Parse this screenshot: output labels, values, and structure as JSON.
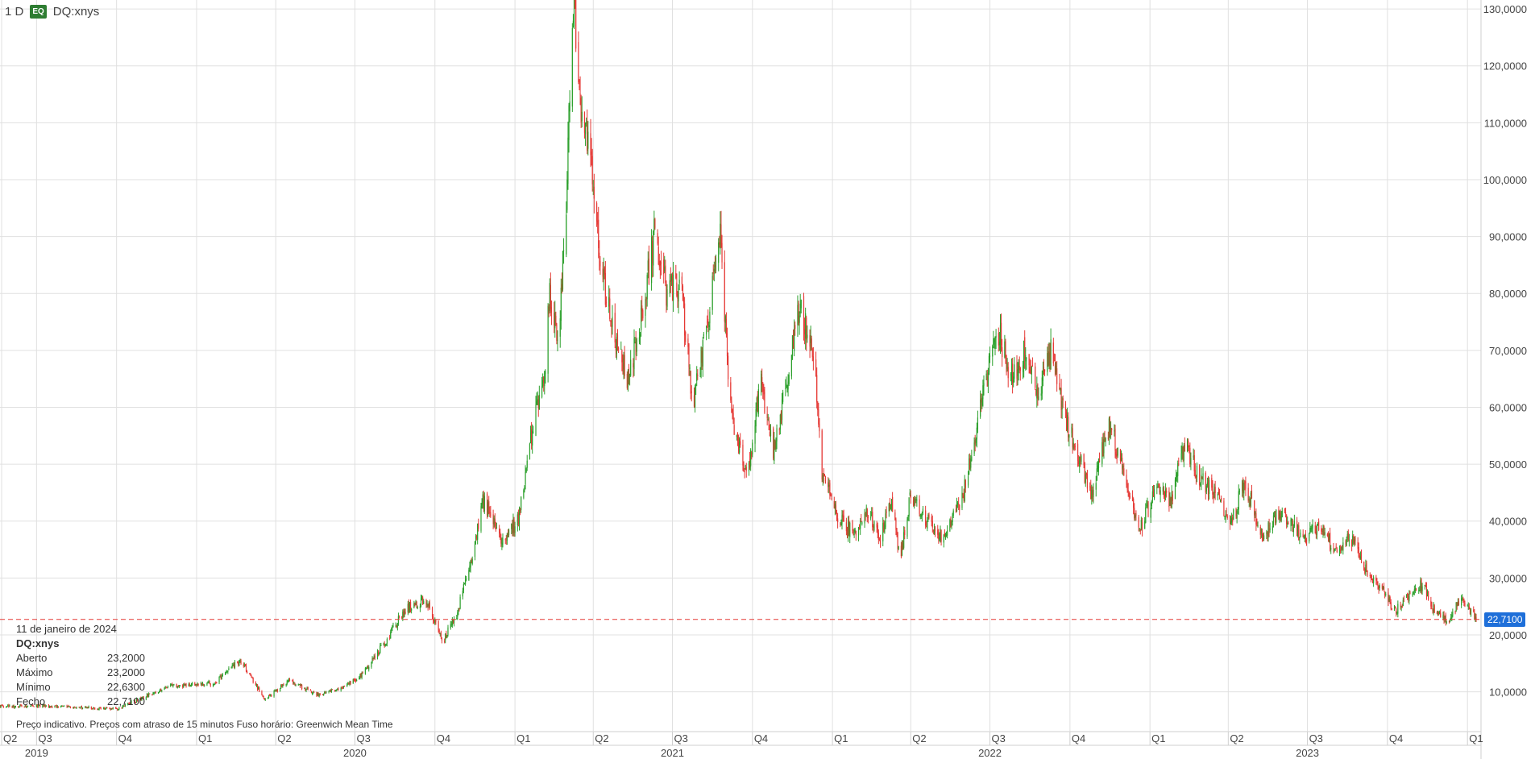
{
  "header": {
    "interval": "1 D",
    "badge": "EQ",
    "symbol": "DQ:xnys"
  },
  "info": {
    "date": "11 de janeiro de 2024",
    "symbol": "DQ:xnys",
    "rows": [
      {
        "label": "Aberto",
        "value": "23,2000"
      },
      {
        "label": "Máximo",
        "value": "23,2000"
      },
      {
        "label": "Mínimo",
        "value": "22,6300"
      },
      {
        "label": "Fecho",
        "value": "22,7100"
      }
    ]
  },
  "footer": {
    "note": "Preço indicativo. Preços com atraso de 15 minutos    Fuso horário: Greenwich Mean Time"
  },
  "colors": {
    "up": "#2ca02c",
    "down": "#e53935",
    "grid": "#e0e0e0",
    "last_price_line": "#e53935",
    "last_price_tag": "#1e6fd9"
  },
  "chart_data": {
    "type": "candlestick",
    "ytick_labels": [
      "10,0000",
      "20,0000",
      "30,0000",
      "40,0000",
      "50,0000",
      "60,0000",
      "70,0000",
      "80,0000",
      "90,0000",
      "100,0000",
      "110,0000",
      "120,0000",
      "130,0000"
    ],
    "ylim": [
      3,
      131
    ],
    "xlim": [
      "2019-05-20",
      "2024-01-11"
    ],
    "quarter_ticks": [
      {
        "date": "2019-04-01",
        "label": "Q2"
      },
      {
        "date": "2019-07-01",
        "label": "Q3"
      },
      {
        "date": "2019-10-01",
        "label": "Q4"
      },
      {
        "date": "2020-01-01",
        "label": "Q1"
      },
      {
        "date": "2020-04-01",
        "label": "Q2"
      },
      {
        "date": "2020-07-01",
        "label": "Q3"
      },
      {
        "date": "2020-10-01",
        "label": "Q4"
      },
      {
        "date": "2021-01-01",
        "label": "Q1"
      },
      {
        "date": "2021-04-01",
        "label": "Q2"
      },
      {
        "date": "2021-07-01",
        "label": "Q3"
      },
      {
        "date": "2021-10-01",
        "label": "Q4"
      },
      {
        "date": "2022-01-01",
        "label": "Q1"
      },
      {
        "date": "2022-04-01",
        "label": "Q2"
      },
      {
        "date": "2022-07-01",
        "label": "Q3"
      },
      {
        "date": "2022-10-01",
        "label": "Q4"
      },
      {
        "date": "2023-01-01",
        "label": "Q1"
      },
      {
        "date": "2023-04-01",
        "label": "Q2"
      },
      {
        "date": "2023-07-01",
        "label": "Q3"
      },
      {
        "date": "2023-10-01",
        "label": "Q4"
      },
      {
        "date": "2024-01-01",
        "label": "Q1"
      }
    ],
    "year_labels": [
      {
        "date": "2019-07-01",
        "label": "2019"
      },
      {
        "date": "2020-07-01",
        "label": "2020"
      },
      {
        "date": "2021-07-01",
        "label": "2021"
      },
      {
        "date": "2022-07-01",
        "label": "2022"
      },
      {
        "date": "2023-07-01",
        "label": "2023"
      }
    ],
    "last_price": 22.71,
    "last_price_label": "22,7100",
    "grid": true,
    "price_path": [
      [
        "2019-05-20",
        7.5
      ],
      [
        "2019-07-01",
        7.5
      ],
      [
        "2019-10-01",
        7.0
      ],
      [
        "2019-12-01",
        11.0
      ],
      [
        "2020-01-20",
        11.5
      ],
      [
        "2020-02-20",
        15.5
      ],
      [
        "2020-03-20",
        8.5
      ],
      [
        "2020-04-15",
        12.0
      ],
      [
        "2020-05-20",
        9.5
      ],
      [
        "2020-06-15",
        10.5
      ],
      [
        "2020-07-10",
        13.0
      ],
      [
        "2020-08-10",
        20.0
      ],
      [
        "2020-08-25",
        24.0
      ],
      [
        "2020-09-20",
        26.5
      ],
      [
        "2020-10-10",
        19.0
      ],
      [
        "2020-10-25",
        23.0
      ],
      [
        "2020-11-10",
        32.0
      ],
      [
        "2020-11-25",
        44.0
      ],
      [
        "2020-12-15",
        37.0
      ],
      [
        "2021-01-05",
        40.0
      ],
      [
        "2021-01-20",
        55.0
      ],
      [
        "2021-02-05",
        68.0
      ],
      [
        "2021-02-10",
        80.0
      ],
      [
        "2021-02-20",
        72.0
      ],
      [
        "2021-03-01",
        95.0
      ],
      [
        "2021-03-05",
        115.0
      ],
      [
        "2021-03-10",
        130.0
      ],
      [
        "2021-03-20",
        110.0
      ],
      [
        "2021-04-01",
        100.0
      ],
      [
        "2021-04-10",
        85.0
      ],
      [
        "2021-04-25",
        72.0
      ],
      [
        "2021-05-10",
        65.0
      ],
      [
        "2021-05-25",
        74.0
      ],
      [
        "2021-06-10",
        90.0
      ],
      [
        "2021-06-25",
        80.0
      ],
      [
        "2021-07-10",
        82.0
      ],
      [
        "2021-07-25",
        60.0
      ],
      [
        "2021-08-10",
        75.0
      ],
      [
        "2021-08-25",
        90.0
      ],
      [
        "2021-09-05",
        60.0
      ],
      [
        "2021-09-25",
        47.0
      ],
      [
        "2021-10-10",
        65.0
      ],
      [
        "2021-10-25",
        52.0
      ],
      [
        "2021-11-10",
        65.0
      ],
      [
        "2021-11-25",
        78.0
      ],
      [
        "2021-12-10",
        70.0
      ],
      [
        "2021-12-20",
        48.0
      ],
      [
        "2022-01-10",
        40.0
      ],
      [
        "2022-01-25",
        38.0
      ],
      [
        "2022-02-10",
        42.0
      ],
      [
        "2022-02-25",
        37.0
      ],
      [
        "2022-03-10",
        44.0
      ],
      [
        "2022-03-20",
        33.0
      ],
      [
        "2022-04-01",
        45.0
      ],
      [
        "2022-04-20",
        40.0
      ],
      [
        "2022-05-10",
        37.0
      ],
      [
        "2022-06-01",
        45.0
      ],
      [
        "2022-06-20",
        60.0
      ],
      [
        "2022-07-10",
        74.0
      ],
      [
        "2022-07-25",
        65.0
      ],
      [
        "2022-08-10",
        70.0
      ],
      [
        "2022-08-25",
        62.0
      ],
      [
        "2022-09-10",
        70.0
      ],
      [
        "2022-09-25",
        58.0
      ],
      [
        "2022-10-10",
        52.0
      ],
      [
        "2022-10-25",
        44.0
      ],
      [
        "2022-11-15",
        57.0
      ],
      [
        "2022-11-30",
        50.0
      ],
      [
        "2022-12-20",
        38.0
      ],
      [
        "2023-01-10",
        47.0
      ],
      [
        "2023-01-25",
        43.0
      ],
      [
        "2023-02-10",
        54.0
      ],
      [
        "2023-02-25",
        48.0
      ],
      [
        "2023-03-15",
        45.0
      ],
      [
        "2023-04-05",
        40.0
      ],
      [
        "2023-04-20",
        47.0
      ],
      [
        "2023-05-10",
        37.0
      ],
      [
        "2023-05-25",
        41.0
      ],
      [
        "2023-06-10",
        40.0
      ],
      [
        "2023-06-25",
        37.0
      ],
      [
        "2023-07-15",
        39.0
      ],
      [
        "2023-08-01",
        35.0
      ],
      [
        "2023-08-20",
        37.0
      ],
      [
        "2023-09-10",
        30.0
      ],
      [
        "2023-09-25",
        28.0
      ],
      [
        "2023-10-10",
        24.0
      ],
      [
        "2023-10-25",
        27.0
      ],
      [
        "2023-11-10",
        29.0
      ],
      [
        "2023-11-25",
        24.0
      ],
      [
        "2023-12-10",
        22.5
      ],
      [
        "2023-12-25",
        27.0
      ],
      [
        "2024-01-05",
        24.0
      ],
      [
        "2024-01-11",
        22.71
      ]
    ]
  }
}
